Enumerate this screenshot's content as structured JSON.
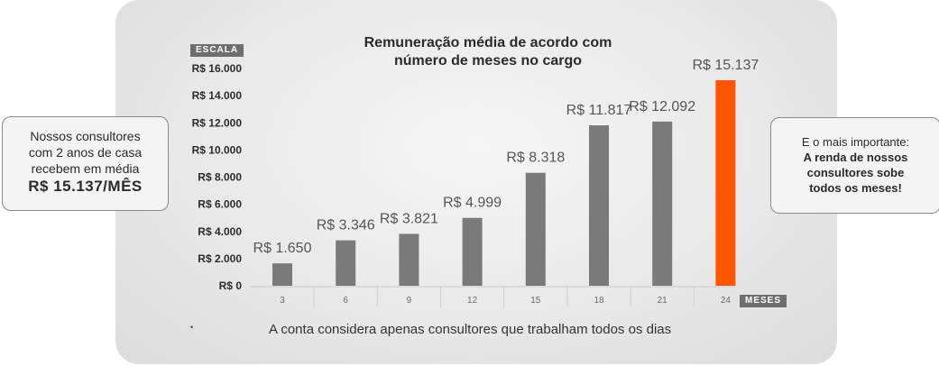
{
  "chart_data": {
    "type": "bar",
    "title": [
      "Remuneração média de acordo com",
      "número de meses no cargo"
    ],
    "ylabel": "ESCALA",
    "xlabel": "MESES",
    "categories": [
      "3",
      "6",
      "9",
      "12",
      "15",
      "18",
      "21",
      "24"
    ],
    "values": [
      1650,
      3346,
      3821,
      4999,
      8318,
      11817,
      12092,
      15137
    ],
    "value_labels": [
      "R$ 1.650",
      "R$ 3.346",
      "R$ 3.821",
      "R$ 4.999",
      "R$ 8.318",
      "R$ 11.817",
      "R$ 12.092",
      "R$ 15.137"
    ],
    "ylim": [
      0,
      16000
    ],
    "yticks": [
      0,
      2000,
      4000,
      6000,
      8000,
      10000,
      12000,
      14000,
      16000
    ],
    "ytick_labels": [
      "R$ 0",
      "R$ 2.000",
      "R$ 4.000",
      "R$ 6.000",
      "R$ 8.000",
      "R$ 10.000",
      "R$ 12.000",
      "R$ 14.000",
      "R$ 16.000"
    ],
    "grid": false,
    "colors": {
      "bar": "#7a7a7a",
      "highlight": "#ff5500",
      "label": "#555555"
    },
    "highlight_index": 7
  },
  "left_callout": {
    "lines": [
      "Nossos consultores",
      "com 2 anos de casa",
      "recebem em média"
    ],
    "highlight": "R$ 15.137/MÊS"
  },
  "right_callout": {
    "intro": "E o mais importante:",
    "bold_lines": [
      "A renda de nossos",
      "consultores sobe",
      "todos os meses!"
    ]
  },
  "footnote": "A conta considera apenas consultores que trabalham todos os dias",
  "footnote_mark": "•"
}
